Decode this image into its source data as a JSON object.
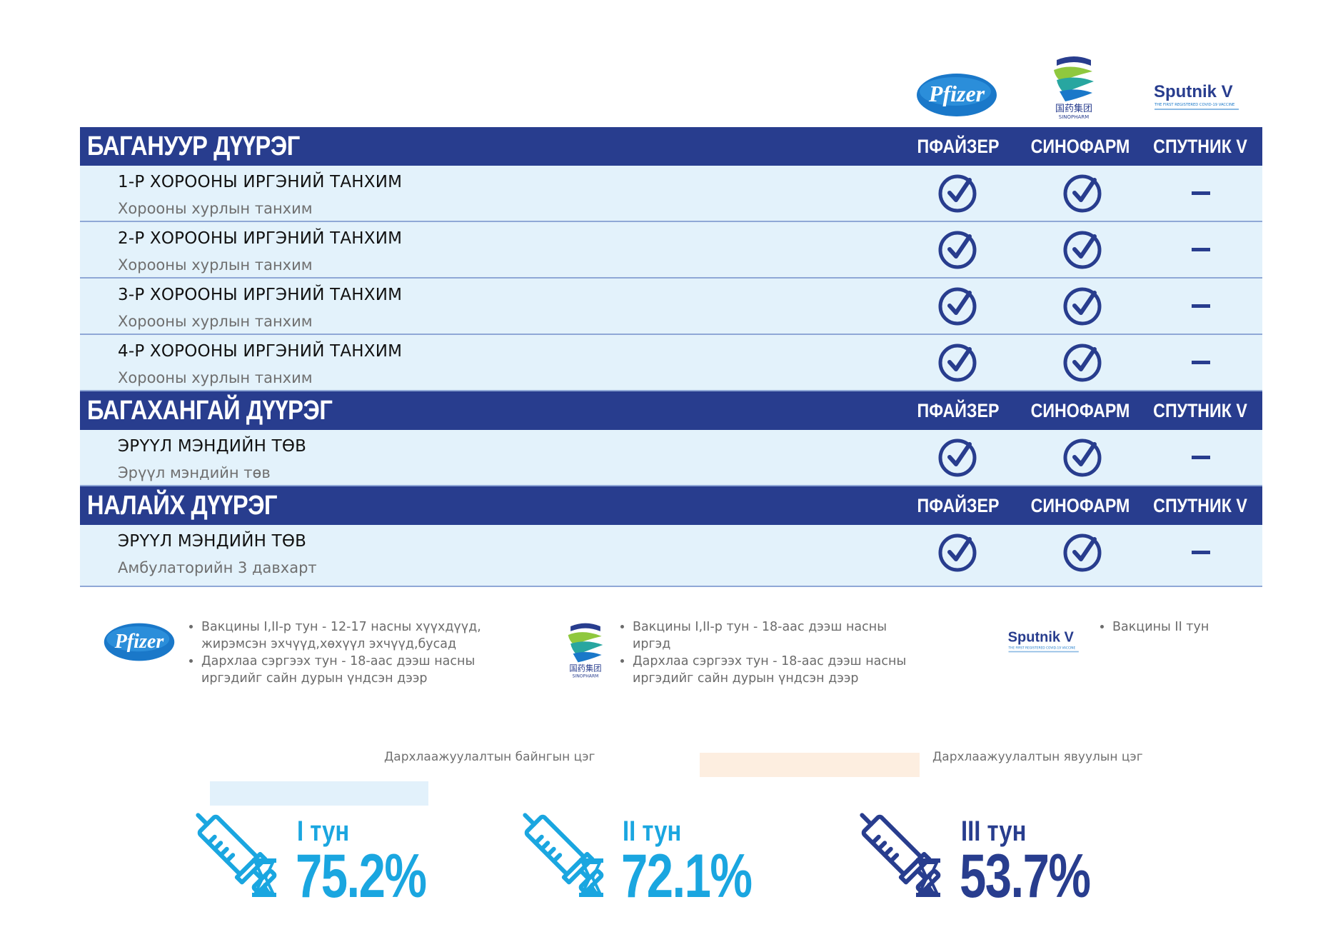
{
  "brands": {
    "pfizer": "Pfizer",
    "sinopharm_cn": "国药集团",
    "sinopharm_en": "SINOPHARM",
    "sputnik": "Sputnik V",
    "sputnik_tag": "THE FIRST REGISTERED COVID-19 VACCINE"
  },
  "columns": [
    "ПФАЙЗЕР",
    "СИНОФАРМ",
    "СПУТНИК V"
  ],
  "sections": [
    {
      "title": "БАГАНУУР ДҮҮРЭГ",
      "rows": [
        {
          "title": "1-Р ХОРООНЫ ИРГЭНИЙ ТАНХИМ",
          "sub": "Хорооны хурлын танхим",
          "pfizer": true,
          "sinopharm": true,
          "sputnik": false
        },
        {
          "title": "2-Р ХОРООНЫ ИРГЭНИЙ ТАНХИМ",
          "sub": "Хорооны хурлын  танхим",
          "pfizer": true,
          "sinopharm": true,
          "sputnik": false
        },
        {
          "title": "3-Р ХОРООНЫ ИРГЭНИЙ ТАНХИМ",
          "sub": "Хорооны хурлын танхим",
          "pfizer": true,
          "sinopharm": true,
          "sputnik": false
        },
        {
          "title": "4-Р ХОРООНЫ ИРГЭНИЙ ТАНХИМ",
          "sub": "Хорооны хурлын танхим",
          "pfizer": true,
          "sinopharm": true,
          "sputnik": false
        }
      ]
    },
    {
      "title": "БАГАХАНГАЙ ДҮҮРЭГ",
      "rows": [
        {
          "title": "ЭРҮҮЛ МЭНДИЙН ТӨВ",
          "sub": "Эрүүл мэндийн төв",
          "pfizer": true,
          "sinopharm": true,
          "sputnik": false
        }
      ]
    },
    {
      "title": "НАЛАЙХ ДҮҮРЭГ",
      "rows": [
        {
          "title": "ЭРҮҮЛ МЭНДИЙН ТӨВ",
          "sub": "Амбулаторийн 3 давхарт",
          "pfizer": true,
          "sinopharm": true,
          "sputnik": false
        }
      ]
    }
  ],
  "legend": {
    "pfizer": [
      "Вакцины I,II-р тун - 12-17 насны хүүхдүүд, жирэмсэн эхчүүд,хөхүүл эхчүүд,бусад",
      "Дархлаа сэргээх тун - 18-аас дээш насны иргэдийг сайн дурын үндсэн дээр"
    ],
    "sinopharm": [
      "Вакцины I,II-р тун - 18-аас дээш насны иргэд",
      "Дархлаа сэргээх тун - 18-аас дээш насны иргэдийг сайн дурын үндсэн дээр"
    ],
    "sputnik": [
      "Вакцины II тун"
    ]
  },
  "categories": {
    "fixed": "Дархлаажуулалтын байнгын цэг",
    "mobile": "Дархлаажуулалтын явуулын цэг"
  },
  "stats": [
    {
      "label": "I тун",
      "value": "75.2%",
      "color": "#1aa6e0"
    },
    {
      "label": "II тун",
      "value": "72.1%",
      "color": "#1aa6e0"
    },
    {
      "label": "III тун",
      "value": "53.7%",
      "color": "#283d8e"
    }
  ],
  "colors": {
    "header_bg": "#283d8e",
    "row_bg": "#e3f2fb",
    "accent_light": "#1aa6e0",
    "fixed_swatch": "#e2f1fb",
    "mobile_swatch": "#fdeee0"
  }
}
